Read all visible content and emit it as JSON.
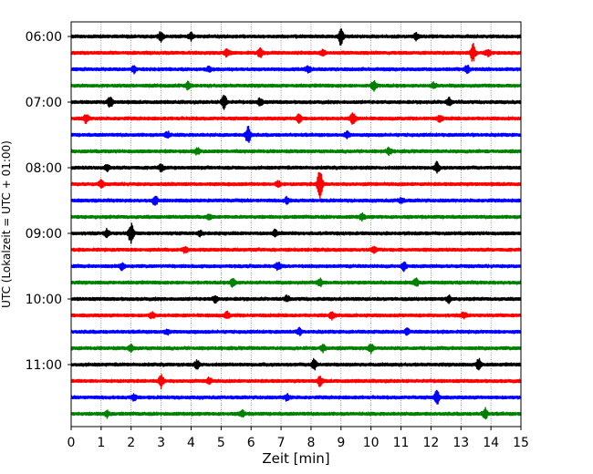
{
  "chart_data": {
    "type": "line",
    "title": "",
    "xlabel": "Zeit  [min]",
    "ylabel": "UTC (Lokalzeit = UTC + 01:00)",
    "xlim": [
      0,
      15
    ],
    "x_ticks": [
      "0",
      "1",
      "2",
      "3",
      "4",
      "5",
      "6",
      "7",
      "8",
      "9",
      "10",
      "11",
      "12",
      "13",
      "14",
      "15"
    ],
    "y_tick_labels": [
      "06:00",
      "07:00",
      "08:00",
      "09:00",
      "10:00",
      "11:00"
    ],
    "trace_start_time": "06:00",
    "trace_interval_minutes": 15,
    "colors": [
      "#000000",
      "#ff0000",
      "#0000ff",
      "#008000"
    ],
    "vertical_grid": true,
    "traces": [
      {
        "start": "06:00",
        "color": "#000000",
        "events": [
          [
            3.0,
            0.45
          ],
          [
            4.0,
            0.3
          ],
          [
            9.0,
            0.7
          ],
          [
            11.5,
            0.25
          ]
        ]
      },
      {
        "start": "06:15",
        "color": "#ff0000",
        "events": [
          [
            5.2,
            0.3
          ],
          [
            6.3,
            0.35
          ],
          [
            8.4,
            0.2
          ],
          [
            13.4,
            0.7
          ],
          [
            13.9,
            0.25
          ]
        ]
      },
      {
        "start": "06:30",
        "color": "#0000ff",
        "events": [
          [
            2.1,
            0.25
          ],
          [
            4.6,
            0.2
          ],
          [
            7.9,
            0.25
          ],
          [
            13.2,
            0.3
          ]
        ]
      },
      {
        "start": "06:45",
        "color": "#008000",
        "events": [
          [
            3.9,
            0.3
          ],
          [
            10.1,
            0.45
          ],
          [
            12.1,
            0.2
          ]
        ]
      },
      {
        "start": "07:00",
        "color": "#000000",
        "events": [
          [
            1.3,
            0.45
          ],
          [
            5.1,
            0.65
          ],
          [
            6.3,
            0.3
          ],
          [
            12.6,
            0.3
          ]
        ]
      },
      {
        "start": "07:15",
        "color": "#ff0000",
        "events": [
          [
            0.5,
            0.35
          ],
          [
            7.6,
            0.35
          ],
          [
            9.4,
            0.55
          ],
          [
            12.3,
            0.25
          ]
        ]
      },
      {
        "start": "07:30",
        "color": "#0000ff",
        "events": [
          [
            3.2,
            0.25
          ],
          [
            5.9,
            0.75
          ],
          [
            9.2,
            0.25
          ]
        ]
      },
      {
        "start": "07:45",
        "color": "#008000",
        "events": [
          [
            4.2,
            0.25
          ],
          [
            10.6,
            0.25
          ]
        ]
      },
      {
        "start": "08:00",
        "color": "#000000",
        "events": [
          [
            1.2,
            0.25
          ],
          [
            3.0,
            0.25
          ],
          [
            12.2,
            0.4
          ]
        ]
      },
      {
        "start": "08:15",
        "color": "#ff0000",
        "events": [
          [
            1.0,
            0.3
          ],
          [
            6.9,
            0.25
          ],
          [
            8.3,
            1.45
          ]
        ]
      },
      {
        "start": "08:30",
        "color": "#0000ff",
        "events": [
          [
            2.8,
            0.35
          ],
          [
            7.2,
            0.25
          ],
          [
            11.0,
            0.2
          ]
        ]
      },
      {
        "start": "08:45",
        "color": "#008000",
        "events": [
          [
            4.6,
            0.2
          ],
          [
            9.7,
            0.25
          ]
        ]
      },
      {
        "start": "09:00",
        "color": "#000000",
        "events": [
          [
            1.2,
            0.3
          ],
          [
            2.0,
            0.9
          ],
          [
            4.3,
            0.2
          ],
          [
            6.8,
            0.25
          ]
        ]
      },
      {
        "start": "09:15",
        "color": "#ff0000",
        "events": [
          [
            3.8,
            0.2
          ],
          [
            10.1,
            0.25
          ]
        ]
      },
      {
        "start": "09:30",
        "color": "#0000ff",
        "events": [
          [
            1.7,
            0.25
          ],
          [
            6.9,
            0.3
          ],
          [
            11.1,
            0.35
          ]
        ]
      },
      {
        "start": "09:45",
        "color": "#008000",
        "events": [
          [
            5.4,
            0.35
          ],
          [
            8.3,
            0.3
          ],
          [
            11.5,
            0.3
          ]
        ]
      },
      {
        "start": "10:00",
        "color": "#000000",
        "events": [
          [
            4.8,
            0.25
          ],
          [
            7.2,
            0.2
          ],
          [
            12.6,
            0.25
          ]
        ]
      },
      {
        "start": "10:15",
        "color": "#ff0000",
        "events": [
          [
            2.7,
            0.25
          ],
          [
            5.2,
            0.25
          ],
          [
            8.7,
            0.3
          ],
          [
            13.1,
            0.25
          ]
        ]
      },
      {
        "start": "10:30",
        "color": "#0000ff",
        "events": [
          [
            3.2,
            0.2
          ],
          [
            7.6,
            0.25
          ],
          [
            11.2,
            0.25
          ]
        ]
      },
      {
        "start": "10:45",
        "color": "#008000",
        "events": [
          [
            2.0,
            0.25
          ],
          [
            8.4,
            0.3
          ],
          [
            10.0,
            0.35
          ]
        ]
      },
      {
        "start": "11:00",
        "color": "#000000",
        "events": [
          [
            4.2,
            0.3
          ],
          [
            8.1,
            0.45
          ],
          [
            13.6,
            0.5
          ]
        ]
      },
      {
        "start": "11:15",
        "color": "#ff0000",
        "events": [
          [
            3.0,
            0.55
          ],
          [
            4.6,
            0.25
          ],
          [
            8.3,
            0.35
          ]
        ]
      },
      {
        "start": "11:30",
        "color": "#0000ff",
        "events": [
          [
            2.1,
            0.25
          ],
          [
            7.2,
            0.25
          ],
          [
            12.2,
            0.55
          ]
        ]
      },
      {
        "start": "11:45",
        "color": "#008000",
        "events": [
          [
            1.2,
            0.25
          ],
          [
            5.7,
            0.25
          ],
          [
            13.8,
            0.45
          ]
        ]
      }
    ]
  }
}
